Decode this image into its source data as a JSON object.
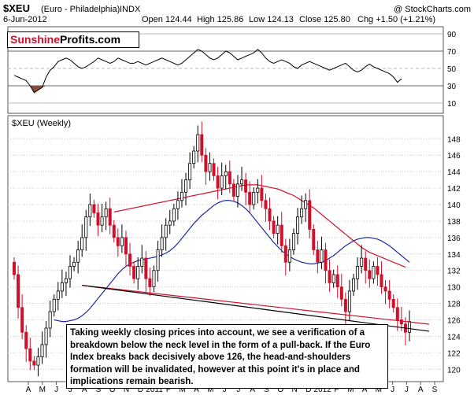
{
  "header": {
    "symbol": "$XEU",
    "description": "(Euro - Philadelphia)",
    "type": "INDX",
    "credit": "@ StockCharts.com",
    "date": "6-Jun-2012",
    "open": "Open 124.44",
    "high": "High 125.86",
    "low": "Low 124.13",
    "close": "Close 125.80",
    "chg": "Chg +1.50 (+1.21%)",
    "chg_color": "#0a7a0a"
  },
  "logo": {
    "word1": "Sunshine",
    "word2": "Profits.com",
    "word1_color": "#d0102a"
  },
  "rsi_panel": {
    "ticks": [
      "90",
      "70",
      "50",
      "30",
      "10"
    ],
    "tick_values": [
      90,
      70,
      50,
      30,
      10
    ],
    "overbought": 70,
    "oversold": 30,
    "series": [
      42,
      40,
      38,
      36,
      30,
      22,
      25,
      28,
      40,
      48,
      52,
      58,
      60,
      62,
      60,
      56,
      52,
      50,
      52,
      55,
      58,
      62,
      60,
      58,
      56,
      58,
      62,
      60,
      58,
      56,
      56,
      58,
      56,
      54,
      56,
      58,
      60,
      62,
      60,
      58,
      56,
      54,
      56,
      60,
      64,
      68,
      72,
      70,
      66,
      62,
      60,
      62,
      66,
      70,
      68,
      64,
      60,
      62,
      64,
      66,
      68,
      72,
      68,
      62,
      58,
      56,
      58,
      60,
      58,
      56,
      52,
      50,
      54,
      56,
      58,
      56,
      54,
      52,
      50,
      48,
      50,
      52,
      54,
      56,
      52,
      48,
      46,
      48,
      52,
      55,
      52,
      50,
      48,
      46,
      44,
      40,
      34,
      38
    ]
  },
  "price_panel": {
    "label": "$XEU (Weekly)",
    "ticks": [
      "148",
      "146",
      "144",
      "142",
      "140",
      "138",
      "136",
      "134",
      "132",
      "130",
      "128",
      "126",
      "124",
      "122",
      "120"
    ],
    "tick_values": [
      148,
      146,
      144,
      142,
      140,
      138,
      136,
      134,
      132,
      130,
      128,
      126,
      124,
      122,
      120
    ],
    "ylim": [
      118.5,
      150.8
    ]
  },
  "x_axis": {
    "labels": [
      "A",
      "M",
      "J",
      "J",
      "A",
      "S",
      "O",
      "N",
      "D",
      "2011",
      "F",
      "M",
      "A",
      "M",
      "J",
      "J",
      "A",
      "S",
      "O",
      "N",
      "D",
      "2012",
      "F",
      "M",
      "A",
      "M",
      "J",
      "J",
      "A",
      "S"
    ]
  },
  "chart_data": {
    "type": "candlestick",
    "title": "$XEU (Euro - Philadelphia) INDX",
    "x_labels": [
      "A",
      "M",
      "J",
      "J",
      "A",
      "S",
      "O",
      "N",
      "D",
      "2011",
      "F",
      "M",
      "A",
      "M",
      "J",
      "J",
      "A",
      "S",
      "O",
      "N",
      "D",
      "2012",
      "F",
      "M",
      "A",
      "M",
      "J",
      "J",
      "A",
      "S"
    ],
    "ylim": [
      118.5,
      150.8
    ],
    "up_color": "#000000",
    "down_color": "#d0102a",
    "close": [
      131.5,
      127.5,
      124.5,
      122.5,
      121.0,
      120.5,
      121.5,
      123.0,
      125.0,
      127.0,
      128.5,
      129.5,
      130.5,
      131.0,
      132.5,
      133.0,
      134.5,
      136.0,
      138.5,
      140.0,
      139.0,
      137.5,
      138.5,
      139.5,
      137.5,
      136.0,
      135.0,
      136.0,
      134.0,
      132.5,
      131.0,
      132.5,
      133.5,
      131.0,
      130.0,
      132.0,
      134.5,
      136.0,
      137.5,
      138.0,
      139.5,
      140.5,
      141.5,
      143.0,
      145.0,
      146.5,
      148.5,
      146.0,
      144.0,
      145.0,
      143.5,
      142.0,
      143.5,
      144.0,
      142.5,
      141.0,
      142.5,
      143.0,
      141.5,
      140.0,
      141.5,
      142.0,
      140.5,
      139.5,
      138.0,
      136.5,
      137.5,
      135.0,
      133.0,
      134.5,
      136.5,
      138.5,
      139.5,
      140.5,
      137.0,
      134.5,
      133.0,
      134.5,
      132.0,
      130.5,
      131.5,
      130.0,
      128.5,
      127.0,
      129.5,
      131.0,
      132.5,
      133.5,
      132.0,
      131.0,
      132.5,
      131.5,
      130.0,
      129.5,
      128.5,
      127.5,
      126.0,
      125.5,
      124.5,
      125.8
    ],
    "ma_short": {
      "color": "#1f2aa0",
      "start": 10,
      "values": [
        126.0,
        125.9,
        125.8,
        125.8,
        125.9,
        126.0,
        126.2,
        126.5,
        126.9,
        127.4,
        128.0,
        128.6,
        129.2,
        129.8,
        130.4,
        131.0,
        131.6,
        132.1,
        132.5,
        132.8,
        133.0,
        133.2,
        133.3,
        133.4,
        133.5,
        133.6,
        133.7,
        133.9,
        134.1,
        134.4,
        134.8,
        135.3,
        135.9,
        136.5,
        137.1,
        137.7,
        138.2,
        138.7,
        139.1,
        139.5,
        139.9,
        140.2,
        140.4,
        140.5,
        140.5,
        140.4,
        140.2,
        139.9,
        139.5,
        139.0,
        138.4,
        137.8,
        137.2,
        136.6,
        136.0,
        135.4,
        134.9,
        134.4,
        134.0,
        133.7,
        133.4,
        133.2,
        133.0,
        132.9,
        132.8,
        132.8,
        132.9,
        133.0,
        133.2,
        133.5,
        133.8,
        134.2,
        134.6,
        135.0,
        135.3,
        135.6,
        135.8,
        135.9,
        136.0,
        136.0,
        135.9,
        135.8,
        135.6,
        135.3,
        135.0,
        134.6,
        134.2,
        133.8,
        133.4,
        133.0
      ]
    },
    "ma_long": {
      "color": "#d0102a",
      "start": 25,
      "values": [
        139.1,
        139.2,
        139.3,
        139.4,
        139.5,
        139.6,
        139.7,
        139.8,
        139.9,
        140.0,
        140.1,
        140.2,
        140.3,
        140.4,
        140.5,
        140.6,
        140.7,
        140.8,
        140.9,
        141.0,
        141.1,
        141.2,
        141.3,
        141.4,
        141.5,
        141.6,
        141.7,
        141.8,
        141.9,
        142.0,
        142.1,
        142.2,
        142.3,
        142.4,
        142.4,
        142.4,
        142.4,
        142.3,
        142.2,
        142.1,
        142.0,
        141.9,
        141.7,
        141.5,
        141.3,
        141.1,
        140.8,
        140.5,
        140.2,
        139.9,
        139.6,
        139.2,
        138.8,
        138.4,
        138.0,
        137.6,
        137.2,
        136.8,
        136.4,
        136.0,
        135.6,
        135.2,
        134.8,
        134.5,
        134.2,
        134.0,
        133.8,
        133.6,
        133.4,
        133.2,
        133.0,
        132.8,
        132.6,
        132.4
      ]
    },
    "neckline": {
      "color": "#000000",
      "from": [
        17,
        130.2
      ],
      "to": [
        98,
        125.0
      ]
    },
    "channel_line": {
      "color": "#d0102a",
      "from": [
        17,
        130.2
      ],
      "to": [
        98,
        125.8
      ]
    },
    "rsi": [
      42,
      40,
      38,
      36,
      30,
      22,
      25,
      28,
      40,
      48,
      52,
      58,
      60,
      62,
      60,
      56,
      52,
      50,
      52,
      55,
      58,
      62,
      60,
      58,
      56,
      58,
      62,
      60,
      58,
      56,
      56,
      58,
      56,
      54,
      56,
      58,
      60,
      62,
      60,
      58,
      56,
      54,
      56,
      60,
      64,
      68,
      72,
      70,
      66,
      62,
      60,
      62,
      66,
      70,
      68,
      64,
      60,
      62,
      64,
      66,
      68,
      72,
      68,
      62,
      58,
      56,
      58,
      60,
      58,
      56,
      52,
      50,
      54,
      56,
      58,
      56,
      54,
      52,
      50,
      48,
      50,
      52,
      54,
      56,
      52,
      48,
      46,
      48,
      52,
      55,
      52,
      50,
      48,
      46,
      44,
      40,
      34,
      38
    ]
  },
  "note": "Taking weekly closing prices into account, we see a verification of a breakdown below the neck level in the form of a pull-back. If the Euro Index breaks back decisively above 126, the head-and-shoulders formation will be invalidated, however at this point it's in place and implications remain bearish."
}
